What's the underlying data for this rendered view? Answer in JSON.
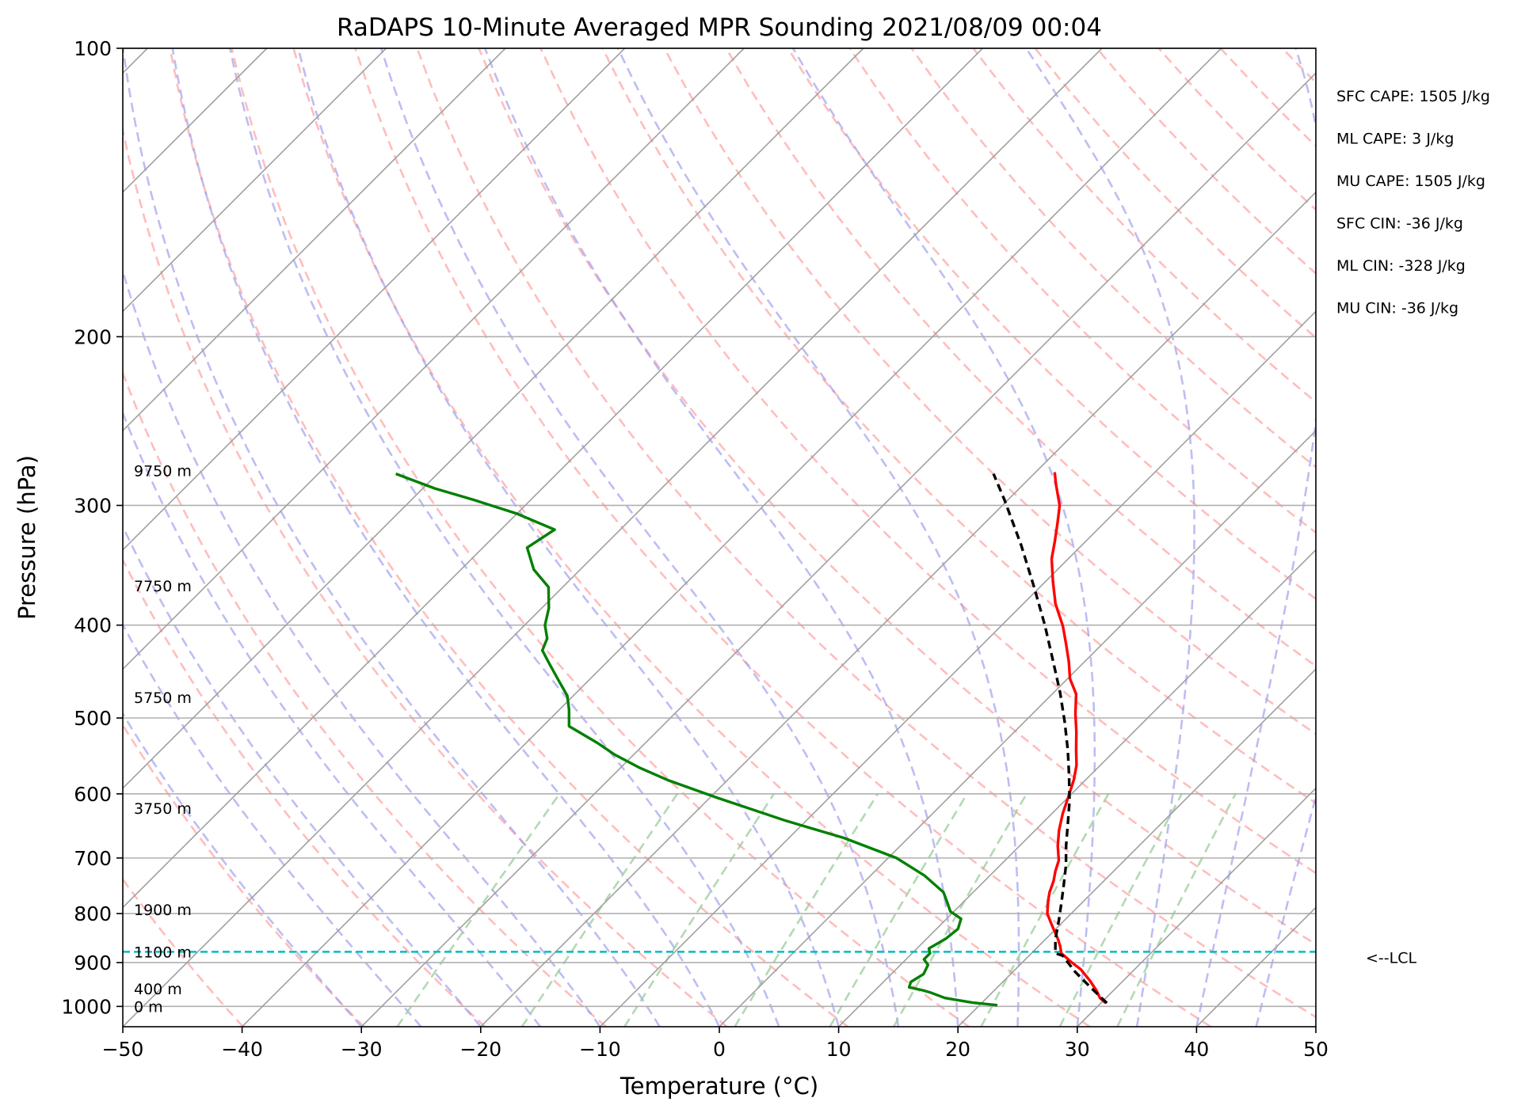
{
  "chart_data": {
    "type": "line",
    "subtype": "skew-t log-p sounding",
    "title": "RaDAPS 10-Minute Averaged MPR Sounding 2021/08/09 00:04",
    "xlabel": "Temperature (°C)",
    "ylabel": "Pressure (hPa)",
    "xlim": [
      -50,
      50
    ],
    "ylim": [
      1050,
      100
    ],
    "y_scale": "log",
    "grid": true,
    "x_ticks": [
      -50,
      -40,
      -30,
      -20,
      -10,
      0,
      10,
      20,
      30,
      40,
      50
    ],
    "x_tick_labels": [
      "−50",
      "−40",
      "−30",
      "−20",
      "−10",
      "0",
      "10",
      "20",
      "30",
      "40",
      "50"
    ],
    "y_ticks": [
      100,
      200,
      300,
      400,
      500,
      600,
      700,
      800,
      900,
      1000
    ],
    "y_tick_labels": [
      "100",
      "200",
      "300",
      "400",
      "500",
      "600",
      "700",
      "800",
      "900",
      "1000"
    ],
    "series": [
      {
        "role": "temperature",
        "color": "#ff0000",
        "style": "solid",
        "points": [
          [
            30.4,
            992
          ],
          [
            29.5,
            980
          ],
          [
            28.6,
            963
          ],
          [
            27.2,
            940
          ],
          [
            25.5,
            915
          ],
          [
            24.0,
            898
          ],
          [
            22.5,
            880
          ],
          [
            21.8,
            865
          ],
          [
            21.0,
            850
          ],
          [
            19.5,
            825
          ],
          [
            18.0,
            800
          ],
          [
            17.0,
            776
          ],
          [
            16.4,
            760
          ],
          [
            15.8,
            740
          ],
          [
            15.1,
            722
          ],
          [
            14.5,
            704
          ],
          [
            13.2,
            680
          ],
          [
            12.0,
            655
          ],
          [
            10.9,
            629
          ],
          [
            10.0,
            605
          ],
          [
            9.0,
            580
          ],
          [
            8.0,
            560
          ],
          [
            6.7,
            540
          ],
          [
            5.2,
            517
          ],
          [
            3.6,
            495
          ],
          [
            2.0,
            472
          ],
          [
            0.2,
            455
          ],
          [
            -1.3,
            437
          ],
          [
            -2.9,
            420
          ],
          [
            -4.8,
            401
          ],
          [
            -7.3,
            380
          ],
          [
            -9.4,
            360
          ],
          [
            -11.4,
            341
          ],
          [
            -12.6,
            327
          ],
          [
            -13.9,
            313
          ],
          [
            -15.2,
            300
          ],
          [
            -17.3,
            285
          ],
          [
            -18.4,
            277
          ]
        ]
      },
      {
        "role": "dewpoint",
        "color": "#008000",
        "style": "solid",
        "points": [
          [
            21.5,
            997
          ],
          [
            19.2,
            991
          ],
          [
            16.5,
            980
          ],
          [
            14.8,
            967
          ],
          [
            14.0,
            962
          ],
          [
            12.6,
            955
          ],
          [
            12.3,
            943
          ],
          [
            12.7,
            925
          ],
          [
            12.3,
            905
          ],
          [
            11.5,
            893
          ],
          [
            11.5,
            880
          ],
          [
            11.0,
            870
          ],
          [
            11.6,
            850
          ],
          [
            11.8,
            830
          ],
          [
            11.2,
            810
          ],
          [
            9.7,
            796
          ],
          [
            8.5,
            776
          ],
          [
            7.5,
            760
          ],
          [
            4.5,
            730
          ],
          [
            0.7,
            700
          ],
          [
            -5.4,
            667
          ],
          [
            -11.7,
            640
          ],
          [
            -19.3,
            606
          ],
          [
            -24.9,
            581
          ],
          [
            -28.5,
            563
          ],
          [
            -31.6,
            546
          ],
          [
            -34.0,
            531
          ],
          [
            -37.8,
            510
          ],
          [
            -39.2,
            490
          ],
          [
            -40.5,
            474
          ],
          [
            -42.5,
            457
          ],
          [
            -44.8,
            438
          ],
          [
            -46.4,
            425
          ],
          [
            -47.0,
            413
          ],
          [
            -48.3,
            400
          ],
          [
            -49.4,
            384
          ],
          [
            -51.2,
            365
          ],
          [
            -53.9,
            350
          ],
          [
            -56.3,
            332
          ],
          [
            -55.5,
            318
          ],
          [
            -60.0,
            306
          ],
          [
            -64.8,
            296
          ],
          [
            -69.0,
            288
          ],
          [
            -73.5,
            278
          ]
        ]
      },
      {
        "role": "parcel profile",
        "color": "#000000",
        "style": "dashed",
        "points": [
          [
            30.5,
            992
          ],
          [
            27.8,
            955
          ],
          [
            25.2,
            920
          ],
          [
            22.8,
            885
          ],
          [
            22.0,
            880
          ],
          [
            21.4,
            865
          ],
          [
            20.8,
            850
          ],
          [
            19.6,
            815
          ],
          [
            18.3,
            780
          ],
          [
            16.9,
            745
          ],
          [
            15.5,
            712
          ],
          [
            13.9,
            680
          ],
          [
            12.2,
            645
          ],
          [
            10.4,
            610
          ],
          [
            8.3,
            575
          ],
          [
            6.0,
            540
          ],
          [
            3.4,
            505
          ],
          [
            0.5,
            470
          ],
          [
            -2.8,
            435
          ],
          [
            -6.4,
            400
          ],
          [
            -10.5,
            365
          ],
          [
            -15.1,
            330
          ],
          [
            -20.3,
            296
          ],
          [
            -23.4,
            278
          ]
        ]
      }
    ],
    "height_labels": [
      {
        "text": "9750 m",
        "p": 276
      },
      {
        "text": "7750 m",
        "p": 364
      },
      {
        "text": "5750 m",
        "p": 476
      },
      {
        "text": "3750 m",
        "p": 621
      },
      {
        "text": "1900 m",
        "p": 792
      },
      {
        "text": "1100 m",
        "p": 877
      },
      {
        "text": "400 m",
        "p": 958
      },
      {
        "text": "0 m",
        "p": 1000
      }
    ],
    "lcl": {
      "p": 877,
      "label": "<--LCL",
      "color": "#00bfbf"
    },
    "stats": [
      "SFC CAPE: 1505 J/kg",
      "ML CAPE: 3 J/kg",
      "MU CAPE: 1505 J/kg",
      "SFC CIN: -36 J/kg",
      "ML CIN: -328 J/kg",
      "MU CIN: -36 J/kg"
    ],
    "background_lines": {
      "isotherms_color": "#a0a0a0",
      "dry_adiabats_color": "#ff9999",
      "moist_adiabats_color": "#9999ee",
      "mixing_ratio_color": "#99cc99"
    }
  }
}
